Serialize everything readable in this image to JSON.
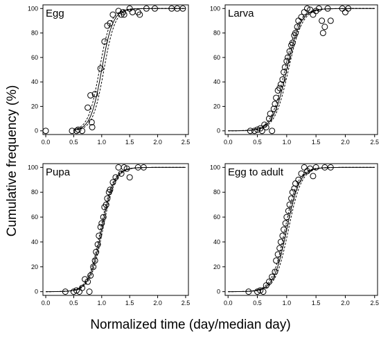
{
  "figure": {
    "ylabel": "Cumulative frequency (%)",
    "xlabel": "Normalized time (day/median day)"
  },
  "chart_data": [
    {
      "type": "scatter",
      "title": "Egg",
      "xlim": [
        -0.05,
        2.55
      ],
      "ylim": [
        -3,
        103
      ],
      "x_ticks": [
        0.0,
        0.5,
        1.0,
        1.5,
        2.0,
        2.5
      ],
      "y_ticks": [
        0,
        20,
        40,
        60,
        80,
        100
      ],
      "grid": false,
      "series": [
        {
          "kind": "observed-points",
          "values": [
            [
              0.0,
              0
            ],
            [
              0.47,
              0
            ],
            [
              0.55,
              0
            ],
            [
              0.58,
              1
            ],
            [
              0.65,
              0
            ],
            [
              0.75,
              19
            ],
            [
              0.8,
              29
            ],
            [
              0.82,
              7
            ],
            [
              0.83,
              3
            ],
            [
              0.88,
              30
            ],
            [
              0.98,
              51
            ],
            [
              1.05,
              73
            ],
            [
              1.1,
              86
            ],
            [
              1.15,
              88
            ],
            [
              1.2,
              95
            ],
            [
              1.3,
              98
            ],
            [
              1.35,
              95
            ],
            [
              1.38,
              97
            ],
            [
              1.4,
              95
            ],
            [
              1.5,
              100
            ],
            [
              1.55,
              97
            ],
            [
              1.65,
              97
            ],
            [
              1.68,
              95
            ],
            [
              1.8,
              100
            ],
            [
              1.95,
              100
            ],
            [
              2.25,
              100
            ],
            [
              2.35,
              100
            ],
            [
              2.45,
              100
            ]
          ]
        },
        {
          "kind": "fitted-curve",
          "line": "solid",
          "curve": {
            "mid": 1.0,
            "k": 10.0,
            "xmin": 0.5,
            "xmax": 2.5
          }
        },
        {
          "kind": "confidence-band",
          "line": "dashed",
          "curve": {
            "mid": 0.96,
            "k": 10.0,
            "xmin": 0.5,
            "xmax": 2.5
          }
        },
        {
          "kind": "confidence-band",
          "line": "dashed",
          "curve": {
            "mid": 1.04,
            "k": 10.0,
            "xmin": 0.5,
            "xmax": 2.5
          }
        }
      ]
    },
    {
      "type": "scatter",
      "title": "Larva",
      "xlim": [
        -0.05,
        2.55
      ],
      "ylim": [
        -3,
        103
      ],
      "x_ticks": [
        0.0,
        0.5,
        1.0,
        1.5,
        2.0,
        2.5
      ],
      "y_ticks": [
        0,
        20,
        40,
        60,
        80,
        100
      ],
      "grid": false,
      "series": [
        {
          "kind": "observed-points",
          "values": [
            [
              0.38,
              0
            ],
            [
              0.45,
              0
            ],
            [
              0.5,
              1
            ],
            [
              0.55,
              2
            ],
            [
              0.58,
              0
            ],
            [
              0.62,
              5
            ],
            [
              0.65,
              3
            ],
            [
              0.7,
              10
            ],
            [
              0.72,
              14
            ],
            [
              0.75,
              0
            ],
            [
              0.78,
              18
            ],
            [
              0.8,
              22
            ],
            [
              0.82,
              27
            ],
            [
              0.85,
              33
            ],
            [
              0.88,
              35
            ],
            [
              0.9,
              38
            ],
            [
              0.93,
              42
            ],
            [
              0.95,
              48
            ],
            [
              0.97,
              52
            ],
            [
              1.0,
              57
            ],
            [
              1.02,
              60
            ],
            [
              1.05,
              65
            ],
            [
              1.08,
              70
            ],
            [
              1.1,
              72
            ],
            [
              1.13,
              78
            ],
            [
              1.15,
              80
            ],
            [
              1.18,
              85
            ],
            [
              1.2,
              90
            ],
            [
              1.25,
              93
            ],
            [
              1.3,
              97
            ],
            [
              1.35,
              100
            ],
            [
              1.4,
              99
            ],
            [
              1.45,
              95
            ],
            [
              1.5,
              98
            ],
            [
              1.55,
              100
            ],
            [
              1.6,
              90
            ],
            [
              1.62,
              80
            ],
            [
              1.65,
              85
            ],
            [
              1.7,
              100
            ],
            [
              1.75,
              90
            ],
            [
              1.95,
              100
            ],
            [
              2.0,
              97
            ],
            [
              2.05,
              100
            ]
          ]
        },
        {
          "kind": "fitted-curve",
          "line": "solid",
          "curve": {
            "mid": 1.0,
            "k": 8.5,
            "xmin": 0.0,
            "xmax": 2.5
          }
        },
        {
          "kind": "confidence-band",
          "line": "dashed",
          "curve": {
            "mid": 0.97,
            "k": 8.5,
            "xmin": 0.0,
            "xmax": 2.5
          }
        },
        {
          "kind": "confidence-band",
          "line": "dashed",
          "curve": {
            "mid": 1.03,
            "k": 8.5,
            "xmin": 0.0,
            "xmax": 2.5
          }
        }
      ]
    },
    {
      "type": "scatter",
      "title": "Pupa",
      "xlim": [
        -0.05,
        2.55
      ],
      "ylim": [
        -3,
        103
      ],
      "x_ticks": [
        0.0,
        0.5,
        1.0,
        1.5,
        2.0,
        2.5
      ],
      "y_ticks": [
        0,
        20,
        40,
        60,
        80,
        100
      ],
      "grid": false,
      "series": [
        {
          "kind": "observed-points",
          "values": [
            [
              0.35,
              0
            ],
            [
              0.5,
              0
            ],
            [
              0.55,
              1
            ],
            [
              0.6,
              0
            ],
            [
              0.65,
              3
            ],
            [
              0.7,
              10
            ],
            [
              0.75,
              8
            ],
            [
              0.78,
              0
            ],
            [
              0.8,
              13
            ],
            [
              0.85,
              20
            ],
            [
              0.88,
              25
            ],
            [
              0.9,
              32
            ],
            [
              0.93,
              38
            ],
            [
              0.95,
              45
            ],
            [
              0.98,
              52
            ],
            [
              1.0,
              55
            ],
            [
              1.03,
              60
            ],
            [
              1.05,
              68
            ],
            [
              1.08,
              70
            ],
            [
              1.1,
              75
            ],
            [
              1.13,
              80
            ],
            [
              1.15,
              82
            ],
            [
              1.2,
              88
            ],
            [
              1.25,
              92
            ],
            [
              1.3,
              100
            ],
            [
              1.35,
              95
            ],
            [
              1.4,
              100
            ],
            [
              1.45,
              99
            ],
            [
              1.5,
              92
            ],
            [
              1.65,
              100
            ],
            [
              1.75,
              100
            ]
          ]
        },
        {
          "kind": "fitted-curve",
          "line": "solid",
          "curve": {
            "mid": 1.0,
            "k": 9.0,
            "xmin": 0.0,
            "xmax": 2.5
          }
        },
        {
          "kind": "confidence-band",
          "line": "dashed",
          "curve": {
            "mid": 0.98,
            "k": 9.0,
            "xmin": 0.0,
            "xmax": 2.5
          }
        },
        {
          "kind": "confidence-band",
          "line": "dashed",
          "curve": {
            "mid": 1.02,
            "k": 9.0,
            "xmin": 0.0,
            "xmax": 2.5
          }
        }
      ]
    },
    {
      "type": "scatter",
      "title": "Egg to adult",
      "xlim": [
        -0.05,
        2.55
      ],
      "ylim": [
        -3,
        103
      ],
      "x_ticks": [
        0.0,
        0.5,
        1.0,
        1.5,
        2.0,
        2.5
      ],
      "y_ticks": [
        0,
        20,
        40,
        60,
        80,
        100
      ],
      "grid": false,
      "series": [
        {
          "kind": "observed-points",
          "values": [
            [
              0.35,
              0
            ],
            [
              0.5,
              0
            ],
            [
              0.55,
              1
            ],
            [
              0.6,
              0
            ],
            [
              0.65,
              5
            ],
            [
              0.7,
              8
            ],
            [
              0.75,
              12
            ],
            [
              0.8,
              16
            ],
            [
              0.82,
              25
            ],
            [
              0.85,
              30
            ],
            [
              0.88,
              35
            ],
            [
              0.9,
              40
            ],
            [
              0.93,
              45
            ],
            [
              0.95,
              50
            ],
            [
              0.98,
              55
            ],
            [
              1.0,
              60
            ],
            [
              1.03,
              65
            ],
            [
              1.05,
              70
            ],
            [
              1.08,
              75
            ],
            [
              1.1,
              80
            ],
            [
              1.13,
              83
            ],
            [
              1.15,
              87
            ],
            [
              1.2,
              90
            ],
            [
              1.25,
              95
            ],
            [
              1.3,
              100
            ],
            [
              1.35,
              97
            ],
            [
              1.4,
              99
            ],
            [
              1.45,
              93
            ],
            [
              1.5,
              100
            ],
            [
              1.65,
              100
            ],
            [
              1.75,
              100
            ]
          ]
        },
        {
          "kind": "fitted-curve",
          "line": "solid",
          "curve": {
            "mid": 1.0,
            "k": 9.0,
            "xmin": 0.0,
            "xmax": 2.5
          }
        },
        {
          "kind": "confidence-band",
          "line": "dashed",
          "curve": {
            "mid": 0.97,
            "k": 9.0,
            "xmin": 0.0,
            "xmax": 2.5
          }
        },
        {
          "kind": "confidence-band",
          "line": "dashed",
          "curve": {
            "mid": 1.03,
            "k": 9.0,
            "xmin": 0.0,
            "xmax": 2.5
          }
        }
      ]
    }
  ]
}
